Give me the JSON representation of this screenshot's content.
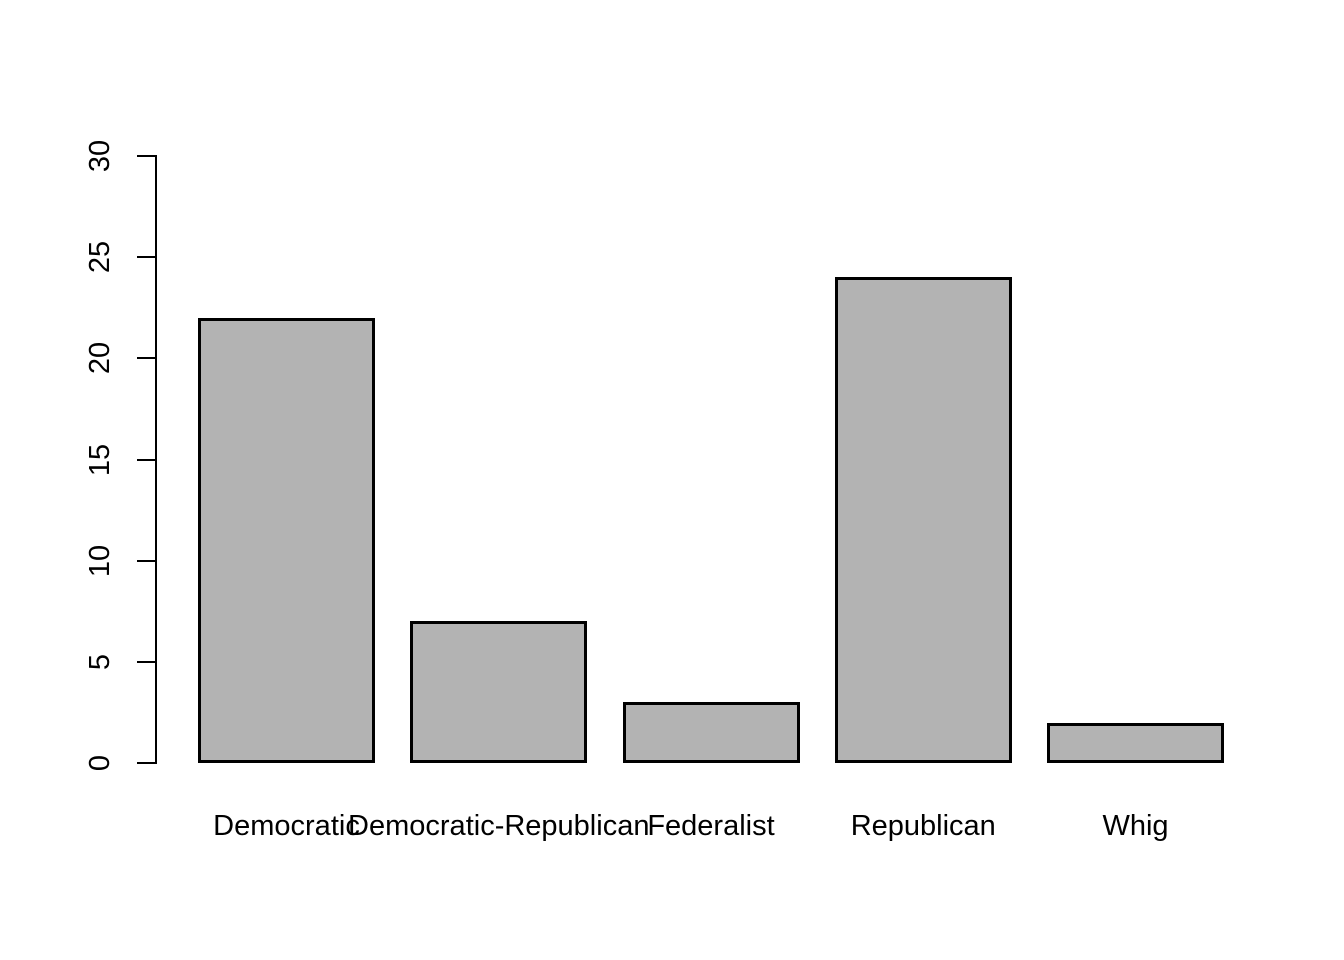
{
  "chart_data": {
    "type": "bar",
    "categories": [
      "Democratic",
      "Democratic-Republican",
      "Federalist",
      "Republican",
      "Whig"
    ],
    "values": [
      22,
      7,
      3,
      24,
      2
    ],
    "title": "",
    "xlabel": "",
    "ylabel": "",
    "ylim": [
      0,
      30
    ],
    "yticks": [
      0,
      5,
      10,
      15,
      20,
      25,
      30
    ],
    "grid": false,
    "legend": null,
    "colors": {
      "bar_fill": "#b3b3b3",
      "bar_border": "#000000",
      "axis": "#000000",
      "text": "#000000",
      "background": "#ffffff"
    }
  }
}
